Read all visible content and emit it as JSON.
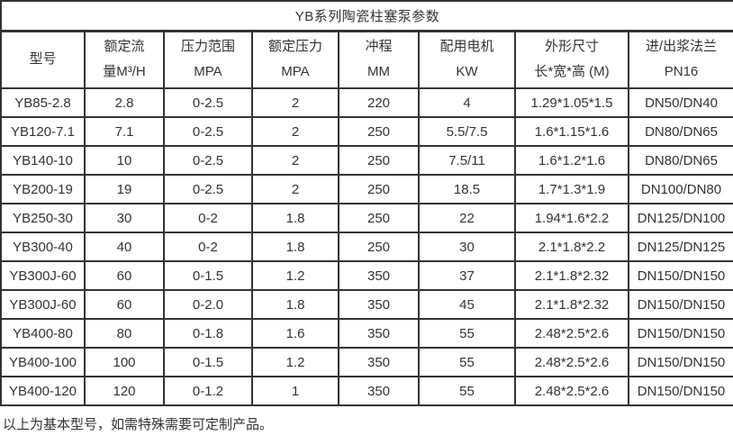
{
  "title": "YB系列陶瓷柱塞泵参数",
  "table": {
    "columns": [
      {
        "line1": "型号",
        "line2": ""
      },
      {
        "line1": "额定流",
        "line2": "量M³/H"
      },
      {
        "line1": "压力范围",
        "line2": "MPA"
      },
      {
        "line1": "额定压力",
        "line2": "MPA"
      },
      {
        "line1": "冲程",
        "line2": "MM"
      },
      {
        "line1": "配用电机",
        "line2": "KW"
      },
      {
        "line1": "外形尺寸",
        "line2": "长*宽*高 (M)"
      },
      {
        "line1": "进/出浆法兰",
        "line2": "PN16"
      }
    ],
    "rows": [
      [
        "YB85-2.8",
        "2.8",
        "0-2.5",
        "2",
        "220",
        "4",
        "1.29*1.05*1.5",
        "DN50/DN40"
      ],
      [
        "YB120-7.1",
        "7.1",
        "0-2.5",
        "2",
        "250",
        "5.5/7.5",
        "1.6*1.15*1.6",
        "DN80/DN65"
      ],
      [
        "YB140-10",
        "10",
        "0-2.5",
        "2",
        "250",
        "7.5/11",
        "1.6*1.2*1.6",
        "DN80/DN65"
      ],
      [
        "YB200-19",
        "19",
        "0-2.5",
        "2",
        "250",
        "18.5",
        "1.7*1.3*1.9",
        "DN100/DN80"
      ],
      [
        "YB250-30",
        "30",
        "0-2",
        "1.8",
        "250",
        "22",
        "1.94*1.6*2.2",
        "DN125/DN100"
      ],
      [
        "YB300-40",
        "40",
        "0-2",
        "1.8",
        "250",
        "30",
        "2.1*1.8*2.2",
        "DN125/DN125"
      ],
      [
        "YB300J-60",
        "60",
        "0-1.5",
        "1.2",
        "350",
        "37",
        "2.1*1.8*2.32",
        "DN150/DN150"
      ],
      [
        "YB300J-60",
        "60",
        "0-2.0",
        "1.8",
        "350",
        "45",
        "2.1*1.8*2.32",
        "DN150/DN150"
      ],
      [
        "YB400-80",
        "80",
        "0-1.8",
        "1.6",
        "350",
        "55",
        "2.48*2.5*2.6",
        "DN150/DN150"
      ],
      [
        "YB400-100",
        "100",
        "0-1.5",
        "1.2",
        "350",
        "55",
        "2.48*2.5*2.6",
        "DN150/DN150"
      ],
      [
        "YB400-120",
        "120",
        "0-1.2",
        "1",
        "350",
        "55",
        "2.48*2.5*2.6",
        "DN150/DN150"
      ]
    ]
  },
  "footer": "以上为基本型号，如需特殊需要可定制产品。",
  "colors": {
    "border": "#333333",
    "text": "#333333",
    "background": "#ffffff"
  }
}
